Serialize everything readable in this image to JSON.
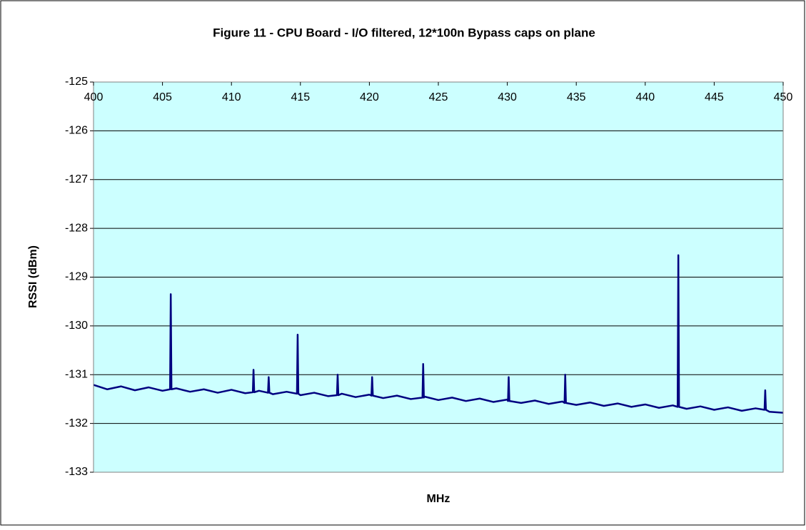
{
  "chart_data": {
    "type": "line",
    "title": "Figure 11 - CPU Board - I/O filtered, 12*100n Bypass caps on plane",
    "x_label": "MHz",
    "y_label": "RSSI (dBm)",
    "xlim": [
      400,
      450
    ],
    "xticks": [
      400,
      405,
      410,
      415,
      420,
      425,
      430,
      435,
      440,
      445,
      450
    ],
    "ylim": [
      -133,
      -125
    ],
    "yticks": [
      -125,
      -126,
      -127,
      -128,
      -129,
      -130,
      -131,
      -132,
      -133
    ],
    "grid": true,
    "series": [
      {
        "color": "#000080",
        "x": [
          400,
          401,
          402,
          403,
          404,
          405,
          405.55,
          405.6,
          405.65,
          406,
          407,
          408,
          409,
          410,
          411,
          411.55,
          411.6,
          411.65,
          412,
          412.65,
          412.7,
          412.75,
          413,
          414,
          414.75,
          414.8,
          414.85,
          415,
          416,
          417,
          417.65,
          417.7,
          417.75,
          418,
          419,
          420,
          420.15,
          420.2,
          420.25,
          421,
          422,
          423,
          423.85,
          423.9,
          423.95,
          424,
          425,
          426,
          427,
          428,
          429,
          430,
          430.05,
          430.1,
          430.15,
          431,
          432,
          433,
          434,
          434.15,
          434.2,
          434.25,
          435,
          436,
          437,
          438,
          439,
          440,
          441,
          442,
          442.35,
          442.4,
          442.45,
          443,
          444,
          445,
          446,
          447,
          448,
          448.65,
          448.7,
          448.75,
          449,
          450
        ],
        "values": [
          -131.21,
          -131.3,
          -131.24,
          -131.32,
          -131.26,
          -131.33,
          -131.3,
          -129.35,
          -131.3,
          -131.28,
          -131.35,
          -131.3,
          -131.37,
          -131.31,
          -131.38,
          -131.36,
          -130.9,
          -131.36,
          -131.33,
          -131.37,
          -131.05,
          -131.37,
          -131.4,
          -131.35,
          -131.39,
          -130.18,
          -131.39,
          -131.42,
          -131.37,
          -131.44,
          -131.42,
          -131.0,
          -131.42,
          -131.39,
          -131.46,
          -131.41,
          -131.43,
          -131.05,
          -131.43,
          -131.48,
          -131.43,
          -131.5,
          -131.47,
          -130.78,
          -131.47,
          -131.45,
          -131.52,
          -131.47,
          -131.54,
          -131.49,
          -131.56,
          -131.51,
          -131.54,
          -131.05,
          -131.54,
          -131.58,
          -131.53,
          -131.6,
          -131.55,
          -131.58,
          -131.0,
          -131.58,
          -131.62,
          -131.57,
          -131.64,
          -131.59,
          -131.66,
          -131.61,
          -131.68,
          -131.63,
          -131.66,
          -128.55,
          -131.66,
          -131.7,
          -131.65,
          -131.72,
          -131.67,
          -131.74,
          -131.69,
          -131.72,
          -131.32,
          -131.72,
          -131.76,
          -131.78
        ]
      }
    ]
  }
}
